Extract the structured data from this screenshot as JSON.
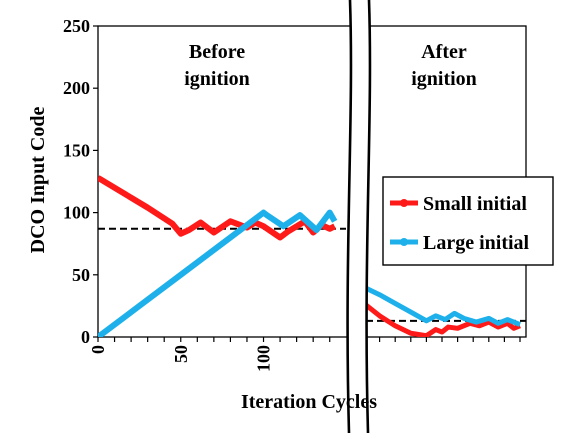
{
  "chart_data": {
    "type": "line",
    "ylabel": "DCO Input Code",
    "xlabel": "Iteration Cycles",
    "ylim": [
      0,
      250
    ],
    "yticks": [
      0,
      50,
      100,
      150,
      200,
      250
    ],
    "xlim_before": [
      0,
      145
    ],
    "xticks_before": [
      0,
      50,
      100
    ],
    "xlim_after": [
      0,
      50
    ],
    "grid": false,
    "axis_break": true,
    "legend_position": "right",
    "regions": [
      {
        "lines": [
          "Before",
          "ignition"
        ]
      },
      {
        "lines": [
          "After",
          "ignition"
        ]
      }
    ],
    "reference_lines": [
      {
        "segment": "before",
        "y": 87,
        "style": "dashed"
      },
      {
        "segment": "after",
        "y": 13,
        "style": "dashed"
      }
    ],
    "series": [
      {
        "name": "Small initial",
        "color": "#ff1a1a",
        "before": {
          "x": [
            0,
            15,
            30,
            45,
            50,
            55,
            62,
            70,
            80,
            90,
            95,
            100,
            110,
            115,
            120,
            125,
            130,
            135,
            140,
            143
          ],
          "y": [
            128,
            116,
            104,
            91,
            83,
            86,
            92,
            84,
            93,
            88,
            92,
            89,
            80,
            85,
            89,
            93,
            84,
            90,
            87,
            89
          ]
        },
        "after": {
          "x": [
            0,
            5,
            10,
            15,
            20,
            23,
            25,
            27,
            30,
            34,
            37,
            40,
            43,
            46,
            48,
            50
          ],
          "y": [
            27,
            17,
            9,
            3,
            1,
            6,
            4,
            8,
            7,
            11,
            9,
            12,
            8,
            11,
            7,
            9
          ]
        }
      },
      {
        "name": "Large initial",
        "color": "#1eb0ea",
        "before": {
          "x": [
            0,
            25,
            50,
            75,
            100,
            102,
            112,
            122,
            132,
            140,
            143
          ],
          "y": [
            0,
            25,
            50,
            75,
            100,
            98,
            89,
            98,
            86,
            100,
            93
          ]
        },
        "after": {
          "x": [
            0,
            5,
            10,
            15,
            20,
            23,
            26,
            29,
            32,
            36,
            40,
            43,
            46,
            48,
            50
          ],
          "y": [
            40,
            34,
            27,
            20,
            13,
            17,
            14,
            19,
            15,
            12,
            15,
            11,
            14,
            12,
            10
          ]
        }
      }
    ]
  }
}
